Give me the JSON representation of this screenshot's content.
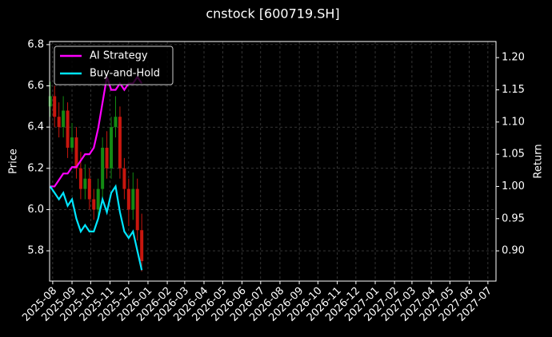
{
  "chart_data": {
    "type": "candlestick",
    "title": "cnstock [600719.SH]",
    "ylabel": "Price",
    "y2label": "Return",
    "x": [
      -4,
      3,
      10,
      17,
      24,
      31,
      38,
      45,
      52,
      59,
      66,
      73,
      80,
      87,
      94,
      101,
      108,
      115,
      122,
      129,
      136,
      143
    ],
    "open": [
      6.5,
      6.55,
      6.45,
      6.4,
      6.48,
      6.3,
      6.35,
      6.2,
      6.1,
      6.15,
      6.05,
      6.0,
      6.1,
      6.3,
      6.2,
      6.4,
      6.45,
      6.2,
      6.1,
      6.0,
      6.1,
      5.9
    ],
    "high": [
      6.62,
      6.6,
      6.52,
      6.55,
      6.52,
      6.42,
      6.4,
      6.28,
      6.22,
      6.2,
      6.1,
      6.15,
      6.35,
      6.38,
      6.45,
      6.55,
      6.5,
      6.25,
      6.15,
      6.18,
      6.15,
      5.98
    ],
    "low": [
      6.45,
      6.4,
      6.35,
      6.35,
      6.25,
      6.28,
      6.15,
      6.05,
      6.05,
      6.0,
      5.95,
      5.95,
      6.05,
      6.15,
      6.15,
      6.35,
      6.15,
      6.05,
      5.92,
      5.95,
      5.85,
      5.7
    ],
    "close": [
      6.55,
      6.45,
      6.4,
      6.48,
      6.3,
      6.35,
      6.2,
      6.1,
      6.15,
      6.05,
      6.0,
      6.1,
      6.3,
      6.2,
      6.4,
      6.45,
      6.2,
      6.1,
      6.0,
      6.1,
      5.9,
      5.75
    ],
    "up_color": "#138a13",
    "down_color": "#c8160e",
    "series": [
      {
        "name": "AI Strategy",
        "color": "#ff00ff",
        "axis": "y2",
        "values": [
          1.0,
          1.0,
          1.01,
          1.02,
          1.02,
          1.03,
          1.03,
          1.04,
          1.05,
          1.05,
          1.06,
          1.09,
          1.13,
          1.17,
          1.15,
          1.15,
          1.16,
          1.15,
          1.16,
          1.16,
          1.17,
          1.16
        ]
      },
      {
        "name": "Buy-and-Hold",
        "color": "#00e5ff",
        "axis": "y2",
        "values": [
          1.0,
          0.99,
          0.98,
          0.99,
          0.97,
          0.98,
          0.95,
          0.93,
          0.94,
          0.93,
          0.93,
          0.95,
          0.98,
          0.96,
          0.99,
          1.0,
          0.96,
          0.93,
          0.92,
          0.93,
          0.9,
          0.87
        ]
      }
    ],
    "xlim": [
      -5,
      712
    ],
    "xticks": [
      {
        "value": 0,
        "label": "2025-08"
      },
      {
        "value": 31,
        "label": "2025-09"
      },
      {
        "value": 61,
        "label": "2025-10"
      },
      {
        "value": 92,
        "label": "2025-11"
      },
      {
        "value": 122,
        "label": "2025-12"
      },
      {
        "value": 153,
        "label": "2026-01"
      },
      {
        "value": 184,
        "label": "2026-02"
      },
      {
        "value": 212,
        "label": "2026-03"
      },
      {
        "value": 243,
        "label": "2026-04"
      },
      {
        "value": 273,
        "label": "2026-05"
      },
      {
        "value": 304,
        "label": "2026-06"
      },
      {
        "value": 334,
        "label": "2026-07"
      },
      {
        "value": 365,
        "label": "2026-08"
      },
      {
        "value": 396,
        "label": "2026-09"
      },
      {
        "value": 426,
        "label": "2026-10"
      },
      {
        "value": 457,
        "label": "2026-11"
      },
      {
        "value": 487,
        "label": "2026-12"
      },
      {
        "value": 518,
        "label": "2027-01"
      },
      {
        "value": 549,
        "label": "2027-02"
      },
      {
        "value": 577,
        "label": "2027-03"
      },
      {
        "value": 608,
        "label": "2027-04"
      },
      {
        "value": 638,
        "label": "2027-05"
      },
      {
        "value": 669,
        "label": "2027-06"
      },
      {
        "value": 699,
        "label": "2027-07"
      }
    ],
    "ylim": [
      5.653,
      6.815
    ],
    "yticks": [
      5.8,
      {
        "value": 6,
        "label": "6.0"
      },
      6.2,
      6.4,
      6.6,
      6.8
    ],
    "y2lim": [
      0.853,
      1.225
    ],
    "y2ticks": [
      {
        "value": 0.9,
        "label": "0.90"
      },
      0.95,
      {
        "value": 1,
        "label": "1.00"
      },
      1.05,
      {
        "value": 1.1,
        "label": "1.10"
      },
      1.15,
      {
        "value": 1.2,
        "label": "1.20"
      }
    ],
    "grid": true,
    "legend": "upper left"
  }
}
